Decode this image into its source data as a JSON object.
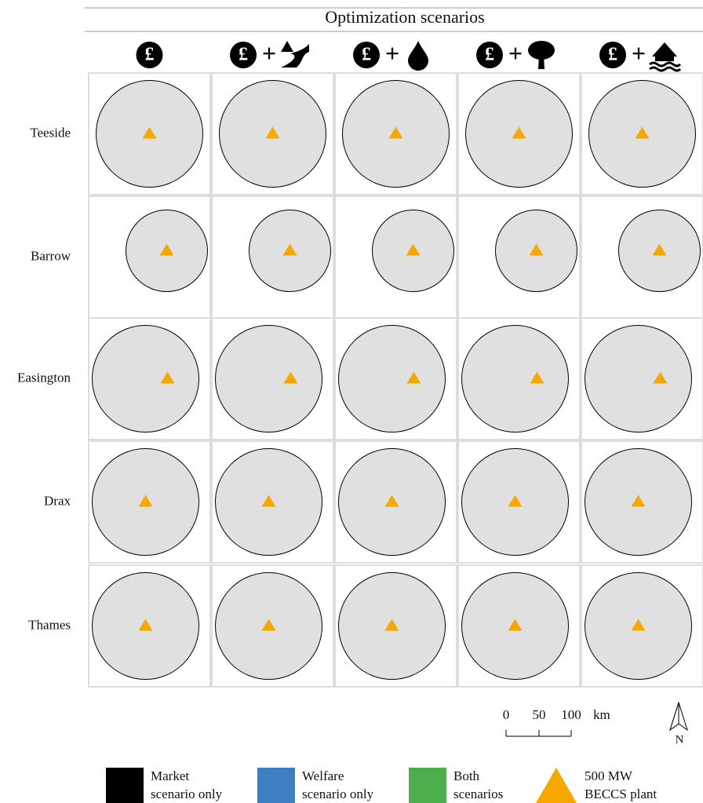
{
  "header": {
    "title": "Optimization scenarios"
  },
  "scenario_icons": {
    "symbol": "£",
    "plus": "+"
  },
  "rows": [
    "Teeside",
    "Barrow",
    "Easington",
    "Drax",
    "Thames"
  ],
  "scale_bar": {
    "ticks": [
      "0",
      "50",
      "100"
    ],
    "unit": "km"
  },
  "north_arrow": {
    "label": "N"
  },
  "legend": [
    {
      "lines": [
        "Market",
        "scenario only"
      ]
    },
    {
      "lines": [
        "Welfare",
        "scenario only"
      ]
    },
    {
      "lines": [
        "Both",
        "scenarios"
      ]
    },
    {
      "lines": [
        "500 MW",
        "BECCS plant"
      ]
    }
  ]
}
